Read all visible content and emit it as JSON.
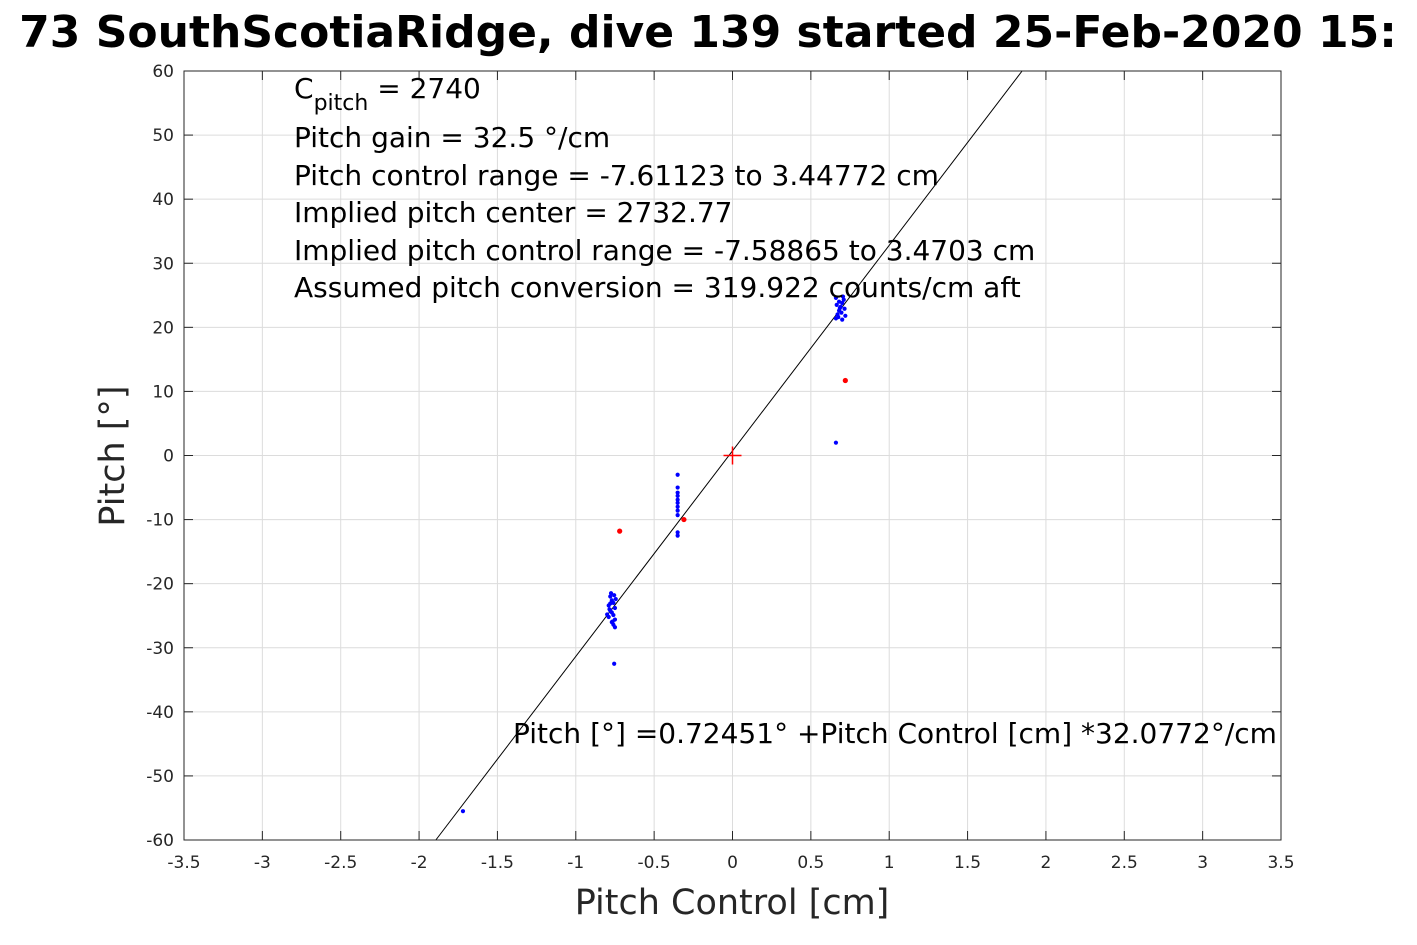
{
  "chart_data": {
    "type": "scatter",
    "title": "73 SouthScotiaRidge, dive 139 started 25-Feb-2020 15:",
    "xlabel": "Pitch Control [cm]",
    "ylabel": "Pitch [°]",
    "xlim": [
      -3.5,
      3.5
    ],
    "ylim": [
      -60,
      60
    ],
    "xticks": [
      -3.5,
      -3,
      -2.5,
      -2,
      -1.5,
      -1,
      -0.5,
      0,
      0.5,
      1,
      1.5,
      2,
      2.5,
      3,
      3.5
    ],
    "xtick_labels": [
      "-3.5",
      "-3",
      "-2.5",
      "-2",
      "-1.5",
      "-1",
      "-0.5",
      "0",
      "0.5",
      "1",
      "1.5",
      "2",
      "2.5",
      "3",
      "3.5"
    ],
    "yticks": [
      -60,
      -50,
      -40,
      -30,
      -20,
      -10,
      0,
      10,
      20,
      30,
      40,
      50,
      60
    ],
    "ytick_labels": [
      "-60",
      "-50",
      "-40",
      "-30",
      "-20",
      "-10",
      "0",
      "10",
      "20",
      "30",
      "40",
      "50",
      "60"
    ],
    "grid": true,
    "annotations": {
      "c_pitch_main": "C",
      "c_pitch_sub": "pitch",
      "c_pitch_value": " = 2740",
      "lines": [
        "Pitch gain = 32.5 °/cm",
        "Pitch control range = -7.61123 to 3.44772 cm",
        "Implied pitch center = 2732.77",
        "Implied pitch control range = -7.58865 to 3.4703 cm",
        "Assumed pitch conversion = 319.922 counts/cm aft"
      ],
      "fit_equation": "Pitch [°] =0.72451° +Pitch Control [cm] *32.0772°/cm"
    },
    "fit_line": {
      "intercept": 0.72451,
      "slope": 32.0772,
      "color": "#000000"
    },
    "center_marker": {
      "x": 0,
      "y": 0,
      "color": "#ff0000"
    },
    "series": [
      {
        "color": "#0000ff",
        "points": [
          [
            -1.72,
            -55.5
          ],
          [
            -0.755,
            -32.5
          ],
          [
            -0.78,
            -22.0
          ],
          [
            -0.77,
            -22.6
          ],
          [
            -0.76,
            -23.0
          ],
          [
            -0.79,
            -23.4
          ],
          [
            -0.75,
            -23.8
          ],
          [
            -0.78,
            -24.2
          ],
          [
            -0.77,
            -24.5
          ],
          [
            -0.76,
            -24.9
          ],
          [
            -0.79,
            -25.2
          ],
          [
            -0.75,
            -25.6
          ],
          [
            -0.77,
            -26.0
          ],
          [
            -0.76,
            -26.4
          ],
          [
            -0.78,
            -23.1
          ],
          [
            -0.745,
            -22.4
          ],
          [
            -0.8,
            -24.8
          ],
          [
            -0.765,
            -25.9
          ],
          [
            -0.755,
            -21.8
          ],
          [
            -0.785,
            -24.0
          ],
          [
            -0.75,
            -26.8
          ],
          [
            -0.775,
            -21.5
          ],
          [
            -0.35,
            -3.0
          ],
          [
            -0.35,
            -5.0
          ],
          [
            -0.35,
            -5.8
          ],
          [
            -0.35,
            -6.3
          ],
          [
            -0.35,
            -6.9
          ],
          [
            -0.35,
            -7.4
          ],
          [
            -0.35,
            -8.0
          ],
          [
            -0.35,
            -8.6
          ],
          [
            -0.35,
            -9.3
          ],
          [
            -0.35,
            -12.0
          ],
          [
            -0.35,
            -12.5
          ],
          [
            0.66,
            2.0
          ],
          [
            0.66,
            21.4
          ],
          [
            0.67,
            22.0
          ],
          [
            0.68,
            22.6
          ],
          [
            0.69,
            23.2
          ],
          [
            0.7,
            23.8
          ],
          [
            0.71,
            24.3
          ],
          [
            0.72,
            21.8
          ],
          [
            0.66,
            24.6
          ],
          [
            0.7,
            21.2
          ],
          [
            0.68,
            24.0
          ],
          [
            0.715,
            22.9
          ],
          [
            0.665,
            23.5
          ],
          [
            0.695,
            22.3
          ],
          [
            0.675,
            21.6
          ],
          [
            0.705,
            24.8
          ],
          [
            0.685,
            23.0
          ]
        ]
      },
      {
        "color": "#ff0000",
        "points": [
          [
            -0.72,
            -11.8
          ],
          [
            0.72,
            11.7
          ],
          [
            -0.31,
            -10.0
          ]
        ]
      }
    ]
  }
}
